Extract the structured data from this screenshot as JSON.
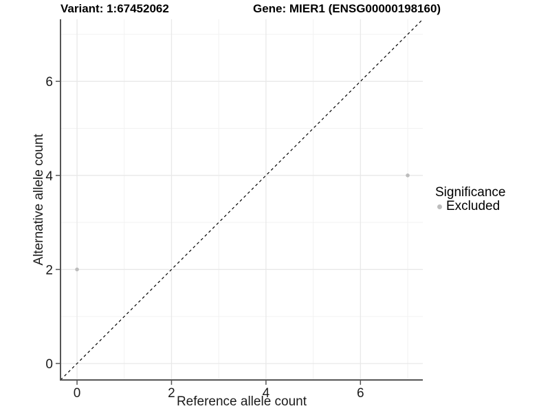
{
  "chart_data": {
    "type": "scatter",
    "title_variant": "Variant: 1:67452062",
    "title_gene": "Gene: MIER1 (ENSG00000198160)",
    "xlabel": "Reference allele count",
    "ylabel": "Alternative allele count",
    "xlim": [
      -0.35,
      7.32
    ],
    "ylim": [
      -0.35,
      7.32
    ],
    "x_ticks": [
      0,
      2,
      4,
      6
    ],
    "y_ticks": [
      0,
      2,
      4,
      6
    ],
    "x_minor_ticks": [
      1,
      3,
      5,
      7
    ],
    "y_minor_ticks": [
      1,
      3,
      5,
      7
    ],
    "grid": "major and minor gridlines, light gray on white panel",
    "points": [
      {
        "x": 0,
        "y": 2,
        "significance": "Excluded"
      },
      {
        "x": 7,
        "y": 4,
        "significance": "Excluded"
      }
    ],
    "reference_line": {
      "type": "identity",
      "equation": "y = x",
      "style": "dashed",
      "color": "#000000"
    },
    "legend": {
      "title": "Significance",
      "position": "right",
      "items": [
        {
          "label": "Excluded",
          "color": "#bdbdbd"
        }
      ]
    },
    "colors": {
      "point": "#bdbdbd",
      "grid_major": "#e8e8e8",
      "grid_minor": "#f2f2f2",
      "axis_line": "#555555",
      "tick_label": "#1a1a1a",
      "diagonal": "#000000",
      "background": "#ffffff"
    }
  }
}
